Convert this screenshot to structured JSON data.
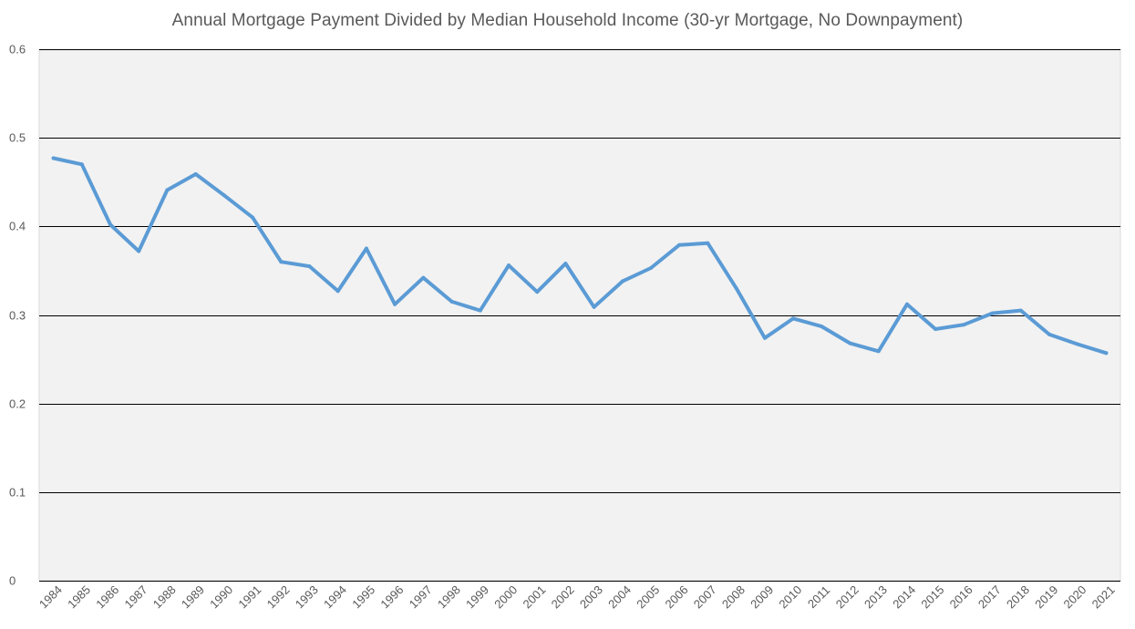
{
  "chart_data": {
    "type": "line",
    "title": "Annual Mortgage Payment Divided by Median Household Income (30-yr Mortgage, No Downpayment)",
    "xlabel": "",
    "ylabel": "",
    "ylim": [
      0,
      0.6
    ],
    "y_ticks": [
      "0",
      "0.1",
      "0.2",
      "0.3",
      "0.4",
      "0.5",
      "0.6"
    ],
    "grid": true,
    "legend": "none",
    "categories": [
      "1984",
      "1985",
      "1986",
      "1987",
      "1988",
      "1989",
      "1990",
      "1991",
      "1992",
      "1993",
      "1994",
      "1995",
      "1996",
      "1997",
      "1998",
      "1999",
      "2000",
      "2001",
      "2002",
      "2003",
      "2004",
      "2005",
      "2006",
      "2007",
      "2008",
      "2009",
      "2010",
      "2011",
      "2012",
      "2013",
      "2014",
      "2015",
      "2016",
      "2017",
      "2018",
      "2019",
      "2020",
      "2021"
    ],
    "series": [
      {
        "values": [
          0.477,
          0.47,
          0.402,
          0.372,
          0.441,
          0.459,
          0.435,
          0.41,
          0.36,
          0.355,
          0.327,
          0.375,
          0.312,
          0.342,
          0.315,
          0.305,
          0.356,
          0.326,
          0.358,
          0.309,
          0.338,
          0.353,
          0.379,
          0.381,
          0.33,
          0.274,
          0.296,
          0.287,
          0.268,
          0.259,
          0.312,
          0.284,
          0.289,
          0.302,
          0.305,
          0.278,
          0.267,
          0.257
        ],
        "color": "#5b9bd5"
      }
    ],
    "colors": {
      "plot_background": "#f2f2f2",
      "gridline": "#000000",
      "text": "#595959",
      "line": "#5b9bd5"
    }
  }
}
